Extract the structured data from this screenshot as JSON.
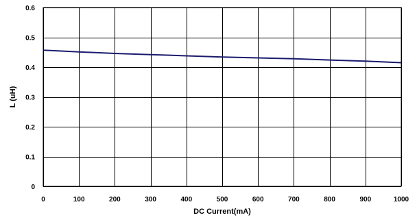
{
  "chart_data": {
    "type": "line",
    "xlabel": "DC Current(mA)",
    "ylabel": "L (uH)",
    "xlim": [
      0,
      1000
    ],
    "ylim": [
      0,
      0.6
    ],
    "x_ticks": [
      0,
      100,
      200,
      300,
      400,
      500,
      600,
      700,
      800,
      900,
      1000
    ],
    "y_ticks": [
      0,
      0.1,
      0.2,
      0.3,
      0.4,
      0.5,
      0.6
    ],
    "x_tick_labels": [
      "0",
      "100",
      "200",
      "300",
      "400",
      "500",
      "600",
      "700",
      "800",
      "900",
      "1000"
    ],
    "y_tick_labels": [
      "0",
      "0.1",
      "0.2",
      "0.3",
      "0.4",
      "0.5",
      "0.6"
    ],
    "grid": true,
    "legend": "none",
    "series": [
      {
        "color": "#1a1a6e",
        "x": [
          0,
          100,
          200,
          300,
          400,
          500,
          600,
          700,
          800,
          900,
          1000
        ],
        "y": [
          0.457,
          0.451,
          0.446,
          0.442,
          0.438,
          0.434,
          0.431,
          0.428,
          0.424,
          0.42,
          0.415
        ]
      }
    ],
    "plot_background": "#ffffff",
    "grid_color": "#000000"
  }
}
